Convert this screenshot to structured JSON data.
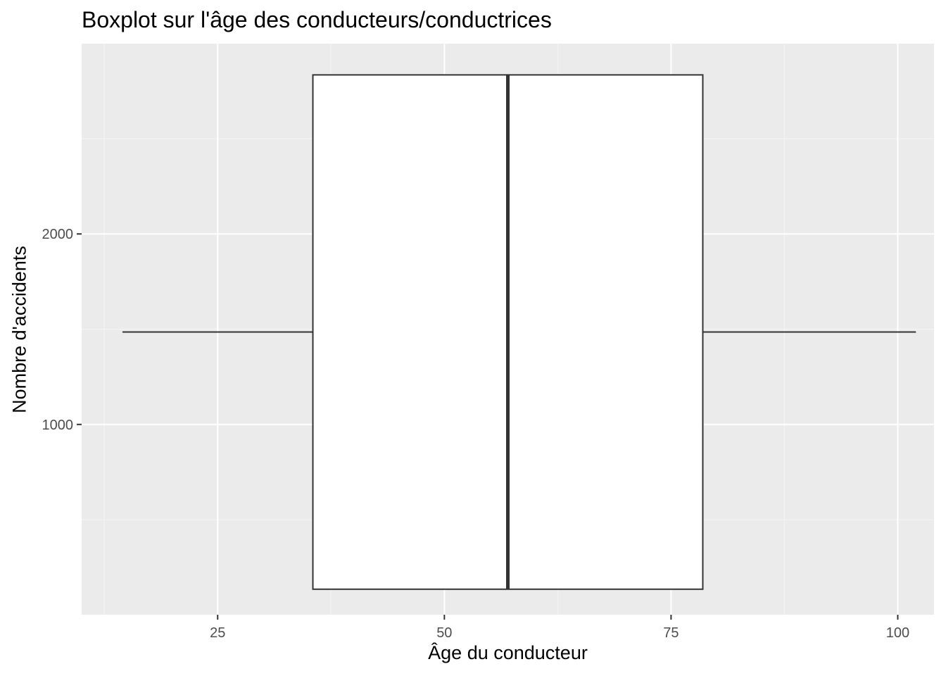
{
  "chart_data": {
    "type": "boxplot",
    "title": "Boxplot sur l'âge des conducteurs/conductrices",
    "xlabel": "Âge du conducteur",
    "ylabel": "Nombre d'accidents",
    "orientation": "horizontal",
    "xlim": [
      10,
      104
    ],
    "ylim": [
      1,
      2999
    ],
    "x_ticks": [
      25,
      50,
      75,
      100
    ],
    "x_tick_labels": [
      "25",
      "50",
      "75",
      "100"
    ],
    "y_ticks": [
      1000,
      2000
    ],
    "y_tick_labels": [
      "1000",
      "2000"
    ],
    "grid": true,
    "box": {
      "min": 14.5,
      "q1": 35.5,
      "median": 57,
      "q3": 78.5,
      "max": 102,
      "y_low": 135,
      "y_high": 2835
    },
    "colors": {
      "panel_background": "#ebebeb",
      "grid_major": "#ffffff",
      "grid_minor": "#f5f5f5",
      "box_fill": "#ffffff",
      "box_stroke": "#333333",
      "tick_label": "#4d4d4d"
    }
  }
}
